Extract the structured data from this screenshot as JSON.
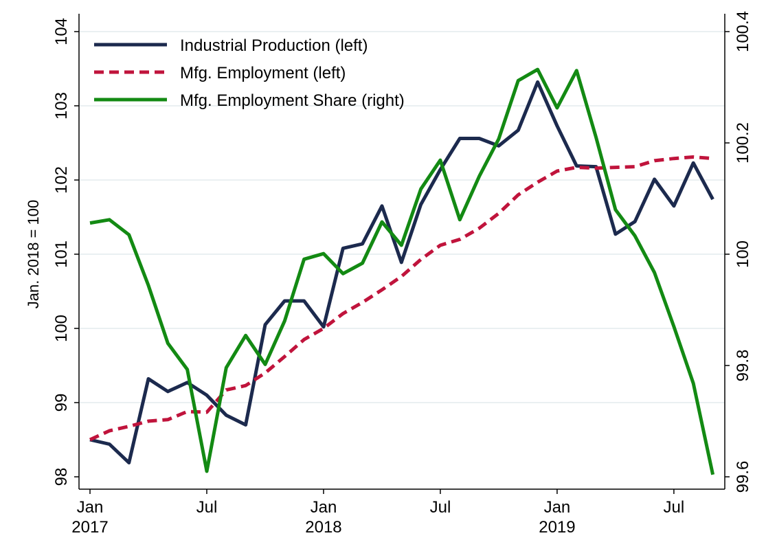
{
  "chart_data": {
    "type": "line",
    "title": "",
    "ylabel": "Jan. 2018 = 100",
    "ylabel_right": "",
    "xlabel": "",
    "ylim": [
      98,
      104
    ],
    "ylim_right": [
      99.6,
      100.4
    ],
    "yticks": [
      "98",
      "99",
      "100",
      "101",
      "102",
      "103",
      "104"
    ],
    "yticks_right": [
      "99.6",
      "99.8",
      "100",
      "100.2",
      "100.4"
    ],
    "xticks": [
      {
        "month": 0,
        "label": "Jan",
        "label2": "2017"
      },
      {
        "month": 6,
        "label": "Jul",
        "label2": ""
      },
      {
        "month": 12,
        "label": "Jan",
        "label2": "2018"
      },
      {
        "month": 18,
        "label": "Jul",
        "label2": ""
      },
      {
        "month": 24,
        "label": "Jan",
        "label2": "2019"
      },
      {
        "month": 30,
        "label": "Jul",
        "label2": ""
      }
    ],
    "x_start": "Jan 2017",
    "x_end": "Sep 2019",
    "grid": true,
    "legend_position": "top-left",
    "series": [
      {
        "name": "Industrial Production (left)",
        "axis": "left",
        "color": "#1c2a4e",
        "style": "solid",
        "values": [
          98.5,
          98.44,
          98.19,
          99.32,
          99.15,
          99.27,
          99.1,
          98.83,
          98.7,
          100.05,
          100.37,
          100.37,
          100.02,
          101.08,
          101.14,
          101.65,
          100.89,
          101.67,
          102.14,
          102.56,
          102.56,
          102.46,
          102.67,
          103.32,
          102.73,
          102.19,
          102.18,
          101.27,
          101.44,
          102.01,
          101.65,
          102.23,
          101.74
        ]
      },
      {
        "name": "Mfg. Employment (left)",
        "axis": "left",
        "color": "#c0143c",
        "style": "dashed",
        "values": [
          98.5,
          98.62,
          98.68,
          98.75,
          98.77,
          98.88,
          98.87,
          99.17,
          99.23,
          99.4,
          99.62,
          99.85,
          100.0,
          100.2,
          100.35,
          100.52,
          100.7,
          100.93,
          101.12,
          101.2,
          101.35,
          101.55,
          101.8,
          101.97,
          102.12,
          102.17,
          102.16,
          102.17,
          102.18,
          102.26,
          102.29,
          102.31,
          102.29
        ]
      },
      {
        "name": "Mfg. Employment Share (right)",
        "axis": "right",
        "color": "#138a13",
        "style": "solid",
        "values": [
          100.056,
          100.062,
          100.035,
          99.944,
          99.84,
          99.793,
          99.61,
          99.796,
          99.854,
          99.802,
          99.88,
          99.991,
          100.001,
          99.965,
          99.984,
          100.058,
          100.016,
          100.117,
          100.169,
          100.062,
          100.14,
          100.207,
          100.312,
          100.332,
          100.263,
          100.33,
          100.21,
          100.08,
          100.033,
          99.967,
          99.87,
          99.768,
          99.604
        ]
      }
    ]
  }
}
